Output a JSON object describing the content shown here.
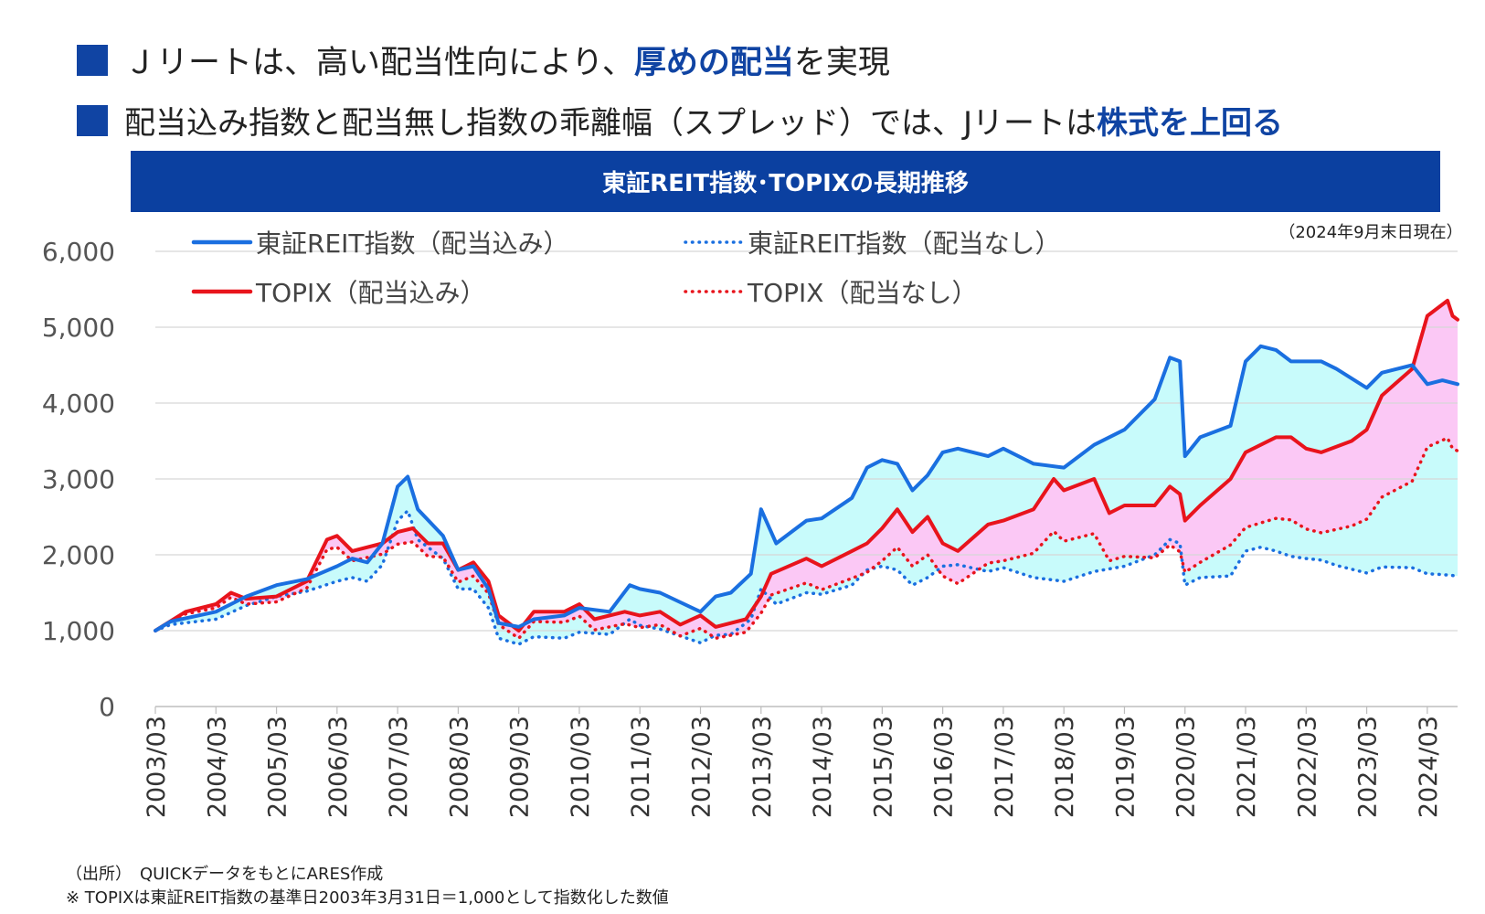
{
  "headline1": {
    "before": "Ｊリートは、高い配当性向により、",
    "highlight": "厚めの配当",
    "after": "を実現"
  },
  "headline2": {
    "before": "配当込み指数と配当無し指数の乖離幅（スプレッド）では、Jリートは",
    "highlight": "株式を上回る"
  },
  "banner_title": "東証REIT指数･TOPIXの長期推移",
  "as_of": "（2024年9月末日現在）",
  "footnote_source": "（出所）　QUICKデータをもとにARES作成",
  "footnote_note": "※ TOPIXは東証REIT指数の基準日2003年3月31日＝1,000として指数化した数値",
  "colors": {
    "heading_square": "#1044a3",
    "banner": "#0b40a0",
    "reit": "#1a6fe0",
    "topix": "#e8141c",
    "reit_spread_fill": "#c8fbfb",
    "topix_spread_fill": "#fbc8f5"
  },
  "chart_data": {
    "type": "line",
    "ylim": [
      0,
      6000
    ],
    "yticks": [
      "0",
      "1,000",
      "2,000",
      "3,000",
      "4,000",
      "5,000",
      "6,000"
    ],
    "x_tick_labels": [
      "2003/03",
      "2004/03",
      "2005/03",
      "2006/03",
      "2007/03",
      "2008/03",
      "2009/03",
      "2010/03",
      "2011/03",
      "2012/03",
      "2013/03",
      "2014/03",
      "2015/03",
      "2016/03",
      "2017/03",
      "2018/03",
      "2019/03",
      "2020/03",
      "2021/03",
      "2022/03",
      "2023/03",
      "2024/03"
    ],
    "x_range": [
      "2003-03",
      "2024-09"
    ],
    "grid": "horizontal",
    "legend_position": "top",
    "series": [
      {
        "name": "東証REIT指数（配当込み）",
        "style": "solid",
        "color": "#1a6fe0",
        "points": [
          [
            "2003-03",
            1000
          ],
          [
            "2003-06",
            1120
          ],
          [
            "2004-03",
            1250
          ],
          [
            "2004-09",
            1450
          ],
          [
            "2005-03",
            1600
          ],
          [
            "2005-09",
            1680
          ],
          [
            "2006-03",
            1850
          ],
          [
            "2006-06",
            1950
          ],
          [
            "2006-09",
            1900
          ],
          [
            "2006-12",
            2150
          ],
          [
            "2007-03",
            2900
          ],
          [
            "2007-05",
            3030
          ],
          [
            "2007-07",
            2600
          ],
          [
            "2007-12",
            2250
          ],
          [
            "2008-03",
            1800
          ],
          [
            "2008-06",
            1850
          ],
          [
            "2008-09",
            1550
          ],
          [
            "2008-11",
            1100
          ],
          [
            "2009-03",
            1050
          ],
          [
            "2009-06",
            1150
          ],
          [
            "2009-12",
            1200
          ],
          [
            "2010-03",
            1300
          ],
          [
            "2010-09",
            1250
          ],
          [
            "2011-01",
            1600
          ],
          [
            "2011-03",
            1550
          ],
          [
            "2011-07",
            1500
          ],
          [
            "2012-03",
            1250
          ],
          [
            "2012-06",
            1450
          ],
          [
            "2012-09",
            1500
          ],
          [
            "2013-01",
            1750
          ],
          [
            "2013-03",
            2600
          ],
          [
            "2013-06",
            2150
          ],
          [
            "2013-12",
            2450
          ],
          [
            "2014-03",
            2480
          ],
          [
            "2014-09",
            2750
          ],
          [
            "2014-12",
            3150
          ],
          [
            "2015-03",
            3250
          ],
          [
            "2015-06",
            3200
          ],
          [
            "2015-09",
            2850
          ],
          [
            "2015-12",
            3050
          ],
          [
            "2016-03",
            3350
          ],
          [
            "2016-06",
            3400
          ],
          [
            "2016-12",
            3300
          ],
          [
            "2017-03",
            3400
          ],
          [
            "2017-09",
            3200
          ],
          [
            "2018-03",
            3150
          ],
          [
            "2018-09",
            3450
          ],
          [
            "2019-03",
            3650
          ],
          [
            "2019-09",
            4050
          ],
          [
            "2019-12",
            4600
          ],
          [
            "2020-02",
            4550
          ],
          [
            "2020-03",
            3300
          ],
          [
            "2020-06",
            3550
          ],
          [
            "2020-12",
            3700
          ],
          [
            "2021-03",
            4550
          ],
          [
            "2021-06",
            4750
          ],
          [
            "2021-09",
            4700
          ],
          [
            "2021-12",
            4550
          ],
          [
            "2022-03",
            4550
          ],
          [
            "2022-06",
            4550
          ],
          [
            "2022-09",
            4450
          ],
          [
            "2023-03",
            4200
          ],
          [
            "2023-06",
            4400
          ],
          [
            "2023-12",
            4500
          ],
          [
            "2024-03",
            4250
          ],
          [
            "2024-06",
            4300
          ],
          [
            "2024-09",
            4250
          ]
        ]
      },
      {
        "name": "東証REIT指数（配当なし）",
        "style": "dotted",
        "color": "#1a6fe0",
        "points": [
          [
            "2003-03",
            1000
          ],
          [
            "2003-06",
            1080
          ],
          [
            "2004-03",
            1150
          ],
          [
            "2004-09",
            1330
          ],
          [
            "2005-03",
            1450
          ],
          [
            "2005-09",
            1520
          ],
          [
            "2006-03",
            1650
          ],
          [
            "2006-06",
            1700
          ],
          [
            "2006-09",
            1650
          ],
          [
            "2006-12",
            1870
          ],
          [
            "2007-03",
            2450
          ],
          [
            "2007-05",
            2580
          ],
          [
            "2007-07",
            2200
          ],
          [
            "2007-12",
            1950
          ],
          [
            "2008-03",
            1550
          ],
          [
            "2008-06",
            1550
          ],
          [
            "2008-09",
            1300
          ],
          [
            "2008-11",
            900
          ],
          [
            "2009-03",
            820
          ],
          [
            "2009-06",
            920
          ],
          [
            "2009-12",
            900
          ],
          [
            "2010-03",
            980
          ],
          [
            "2010-09",
            950
          ],
          [
            "2011-01",
            1150
          ],
          [
            "2011-03",
            1070
          ],
          [
            "2011-07",
            1020
          ],
          [
            "2012-03",
            840
          ],
          [
            "2012-06",
            940
          ],
          [
            "2012-09",
            950
          ],
          [
            "2013-01",
            1150
          ],
          [
            "2013-03",
            1550
          ],
          [
            "2013-06",
            1350
          ],
          [
            "2013-12",
            1500
          ],
          [
            "2014-03",
            1480
          ],
          [
            "2014-09",
            1600
          ],
          [
            "2014-12",
            1800
          ],
          [
            "2015-03",
            1850
          ],
          [
            "2015-06",
            1800
          ],
          [
            "2015-09",
            1600
          ],
          [
            "2015-12",
            1700
          ],
          [
            "2016-03",
            1850
          ],
          [
            "2016-06",
            1870
          ],
          [
            "2016-12",
            1780
          ],
          [
            "2017-03",
            1830
          ],
          [
            "2017-09",
            1700
          ],
          [
            "2018-03",
            1650
          ],
          [
            "2018-09",
            1780
          ],
          [
            "2019-03",
            1850
          ],
          [
            "2019-09",
            2000
          ],
          [
            "2019-12",
            2200
          ],
          [
            "2020-02",
            2150
          ],
          [
            "2020-03",
            1600
          ],
          [
            "2020-06",
            1700
          ],
          [
            "2020-12",
            1720
          ],
          [
            "2021-03",
            2050
          ],
          [
            "2021-06",
            2100
          ],
          [
            "2021-09",
            2050
          ],
          [
            "2021-12",
            1980
          ],
          [
            "2022-03",
            1950
          ],
          [
            "2022-06",
            1930
          ],
          [
            "2022-09",
            1860
          ],
          [
            "2023-03",
            1760
          ],
          [
            "2023-06",
            1840
          ],
          [
            "2023-12",
            1830
          ],
          [
            "2024-03",
            1750
          ],
          [
            "2024-06",
            1740
          ],
          [
            "2024-09",
            1720
          ]
        ]
      },
      {
        "name": "TOPIX（配当込み）",
        "style": "solid",
        "color": "#e8141c",
        "points": [
          [
            "2003-03",
            1000
          ],
          [
            "2003-09",
            1250
          ],
          [
            "2004-03",
            1350
          ],
          [
            "2004-06",
            1500
          ],
          [
            "2004-09",
            1420
          ],
          [
            "2005-03",
            1450
          ],
          [
            "2005-09",
            1650
          ],
          [
            "2006-01",
            2200
          ],
          [
            "2006-03",
            2250
          ],
          [
            "2006-06",
            2050
          ],
          [
            "2006-12",
            2150
          ],
          [
            "2007-03",
            2300
          ],
          [
            "2007-06",
            2350
          ],
          [
            "2007-09",
            2150
          ],
          [
            "2007-12",
            2150
          ],
          [
            "2008-03",
            1800
          ],
          [
            "2008-06",
            1900
          ],
          [
            "2008-09",
            1650
          ],
          [
            "2008-11",
            1200
          ],
          [
            "2009-03",
            1000
          ],
          [
            "2009-06",
            1250
          ],
          [
            "2009-12",
            1250
          ],
          [
            "2010-03",
            1350
          ],
          [
            "2010-06",
            1150
          ],
          [
            "2010-12",
            1250
          ],
          [
            "2011-03",
            1200
          ],
          [
            "2011-07",
            1250
          ],
          [
            "2011-11",
            1080
          ],
          [
            "2012-03",
            1200
          ],
          [
            "2012-06",
            1050
          ],
          [
            "2012-12",
            1150
          ],
          [
            "2013-03",
            1450
          ],
          [
            "2013-05",
            1750
          ],
          [
            "2013-12",
            1950
          ],
          [
            "2014-03",
            1850
          ],
          [
            "2014-09",
            2050
          ],
          [
            "2014-12",
            2150
          ],
          [
            "2015-03",
            2350
          ],
          [
            "2015-06",
            2600
          ],
          [
            "2015-09",
            2300
          ],
          [
            "2015-12",
            2500
          ],
          [
            "2016-03",
            2150
          ],
          [
            "2016-06",
            2050
          ],
          [
            "2016-12",
            2400
          ],
          [
            "2017-03",
            2450
          ],
          [
            "2017-09",
            2600
          ],
          [
            "2018-01",
            3000
          ],
          [
            "2018-03",
            2850
          ],
          [
            "2018-09",
            3000
          ],
          [
            "2018-12",
            2550
          ],
          [
            "2019-03",
            2650
          ],
          [
            "2019-09",
            2650
          ],
          [
            "2019-12",
            2900
          ],
          [
            "2020-02",
            2800
          ],
          [
            "2020-03",
            2450
          ],
          [
            "2020-06",
            2650
          ],
          [
            "2020-12",
            3000
          ],
          [
            "2021-03",
            3350
          ],
          [
            "2021-09",
            3550
          ],
          [
            "2021-12",
            3550
          ],
          [
            "2022-03",
            3400
          ],
          [
            "2022-06",
            3350
          ],
          [
            "2022-12",
            3500
          ],
          [
            "2023-03",
            3650
          ],
          [
            "2023-06",
            4100
          ],
          [
            "2023-12",
            4450
          ],
          [
            "2024-03",
            5150
          ],
          [
            "2024-07",
            5350
          ],
          [
            "2024-08",
            5150
          ],
          [
            "2024-09",
            5100
          ]
        ]
      },
      {
        "name": "TOPIX（配当なし）",
        "style": "dotted",
        "color": "#e8141c",
        "points": [
          [
            "2003-03",
            1000
          ],
          [
            "2003-09",
            1220
          ],
          [
            "2004-03",
            1300
          ],
          [
            "2004-06",
            1440
          ],
          [
            "2004-09",
            1350
          ],
          [
            "2005-03",
            1380
          ],
          [
            "2005-09",
            1560
          ],
          [
            "2006-01",
            2070
          ],
          [
            "2006-03",
            2100
          ],
          [
            "2006-06",
            1920
          ],
          [
            "2006-12",
            2010
          ],
          [
            "2007-03",
            2140
          ],
          [
            "2007-06",
            2170
          ],
          [
            "2007-09",
            1980
          ],
          [
            "2007-12",
            1970
          ],
          [
            "2008-03",
            1640
          ],
          [
            "2008-06",
            1720
          ],
          [
            "2008-09",
            1490
          ],
          [
            "2008-11",
            1080
          ],
          [
            "2009-03",
            900
          ],
          [
            "2009-06",
            1120
          ],
          [
            "2009-12",
            1110
          ],
          [
            "2010-03",
            1190
          ],
          [
            "2010-06",
            1010
          ],
          [
            "2010-12",
            1090
          ],
          [
            "2011-03",
            1040
          ],
          [
            "2011-07",
            1080
          ],
          [
            "2011-11",
            930
          ],
          [
            "2012-03",
            1030
          ],
          [
            "2012-06",
            900
          ],
          [
            "2012-12",
            980
          ],
          [
            "2013-03",
            1230
          ],
          [
            "2013-05",
            1470
          ],
          [
            "2013-12",
            1630
          ],
          [
            "2014-03",
            1540
          ],
          [
            "2014-09",
            1690
          ],
          [
            "2014-12",
            1770
          ],
          [
            "2015-03",
            1920
          ],
          [
            "2015-06",
            2100
          ],
          [
            "2015-09",
            1850
          ],
          [
            "2015-12",
            2000
          ],
          [
            "2016-03",
            1720
          ],
          [
            "2016-06",
            1620
          ],
          [
            "2016-12",
            1890
          ],
          [
            "2017-03",
            1920
          ],
          [
            "2017-09",
            2020
          ],
          [
            "2018-01",
            2310
          ],
          [
            "2018-03",
            2180
          ],
          [
            "2018-09",
            2280
          ],
          [
            "2018-12",
            1920
          ],
          [
            "2019-03",
            1980
          ],
          [
            "2019-09",
            1960
          ],
          [
            "2019-12",
            2130
          ],
          [
            "2020-02",
            2040
          ],
          [
            "2020-03",
            1770
          ],
          [
            "2020-06",
            1900
          ],
          [
            "2020-12",
            2130
          ],
          [
            "2021-03",
            2360
          ],
          [
            "2021-09",
            2480
          ],
          [
            "2021-12",
            2460
          ],
          [
            "2022-03",
            2340
          ],
          [
            "2022-06",
            2290
          ],
          [
            "2022-12",
            2380
          ],
          [
            "2023-03",
            2470
          ],
          [
            "2023-06",
            2760
          ],
          [
            "2023-12",
            2970
          ],
          [
            "2024-03",
            3420
          ],
          [
            "2024-07",
            3540
          ],
          [
            "2024-08",
            3400
          ],
          [
            "2024-09",
            3370
          ]
        ]
      }
    ]
  }
}
